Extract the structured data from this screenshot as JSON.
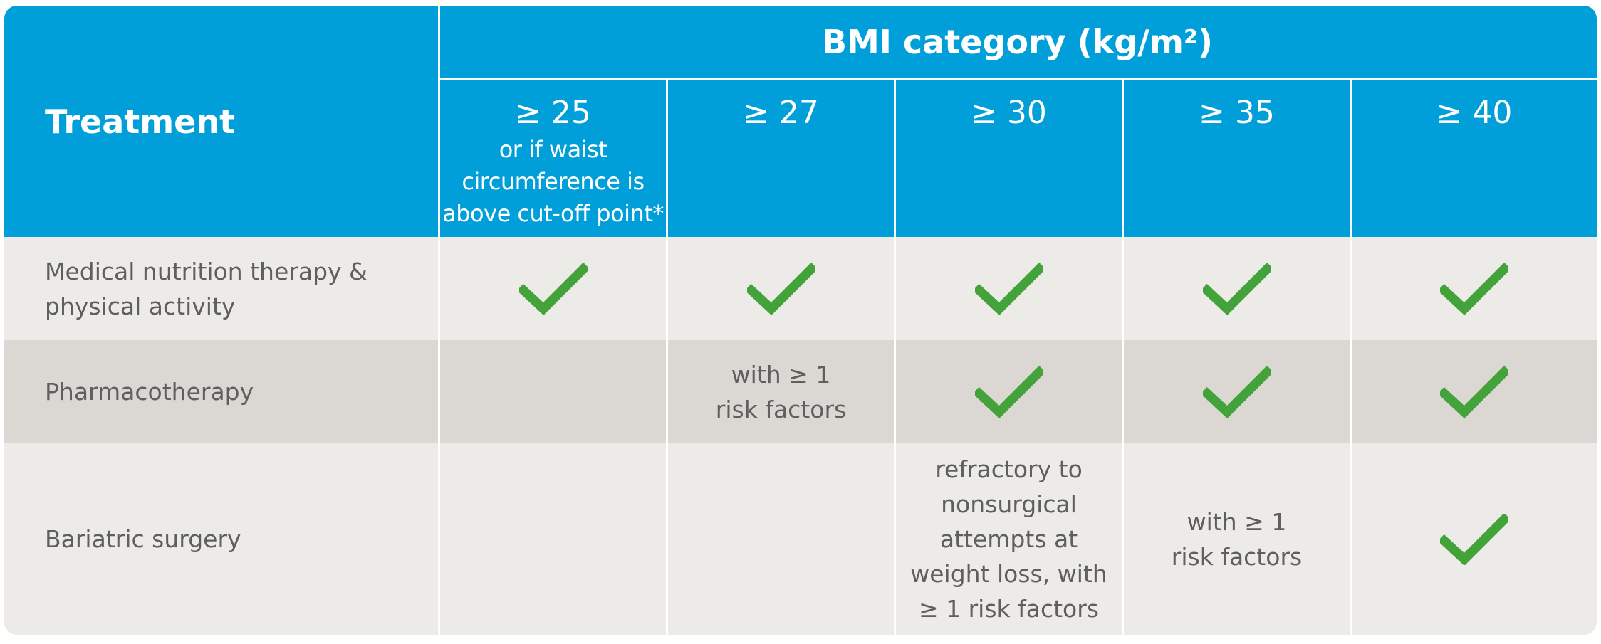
{
  "colors": {
    "header": "#009fd9",
    "row_light": "#ecebe7",
    "row_dark": "#dbd7d3",
    "check": "#43a33a",
    "text": "#5f5f5f"
  },
  "header": {
    "treatment": "Treatment",
    "bmi_category": "BMI category (kg/m²)",
    "columns": [
      {
        "threshold": "≥ 25",
        "note_lines": [
          "or if waist",
          "circumference is",
          "above cut-off point*"
        ]
      },
      {
        "threshold": "≥ 27"
      },
      {
        "threshold": "≥ 30"
      },
      {
        "threshold": "≥ 35"
      },
      {
        "threshold": "≥ 40"
      }
    ]
  },
  "rows": [
    {
      "label_lines": [
        "Medical nutrition therapy &",
        "physical activity"
      ],
      "cells": [
        "check-icon",
        "check-icon",
        "check-icon",
        "check-icon",
        "check-icon"
      ]
    },
    {
      "label_lines": [
        "Pharmacotherapy"
      ],
      "cells": [
        "",
        {
          "lines": [
            "with ≥ 1",
            "risk factors"
          ]
        },
        "check-icon",
        "check-icon",
        "check-icon"
      ]
    },
    {
      "label_lines": [
        "Bariatric surgery"
      ],
      "cells": [
        "",
        "",
        {
          "lines": [
            "refractory to",
            "nonsurgical",
            "attempts at",
            "weight loss, with",
            "≥ 1 risk factors"
          ]
        },
        {
          "lines": [
            "with ≥ 1",
            "risk factors"
          ]
        },
        "check-icon"
      ]
    }
  ]
}
